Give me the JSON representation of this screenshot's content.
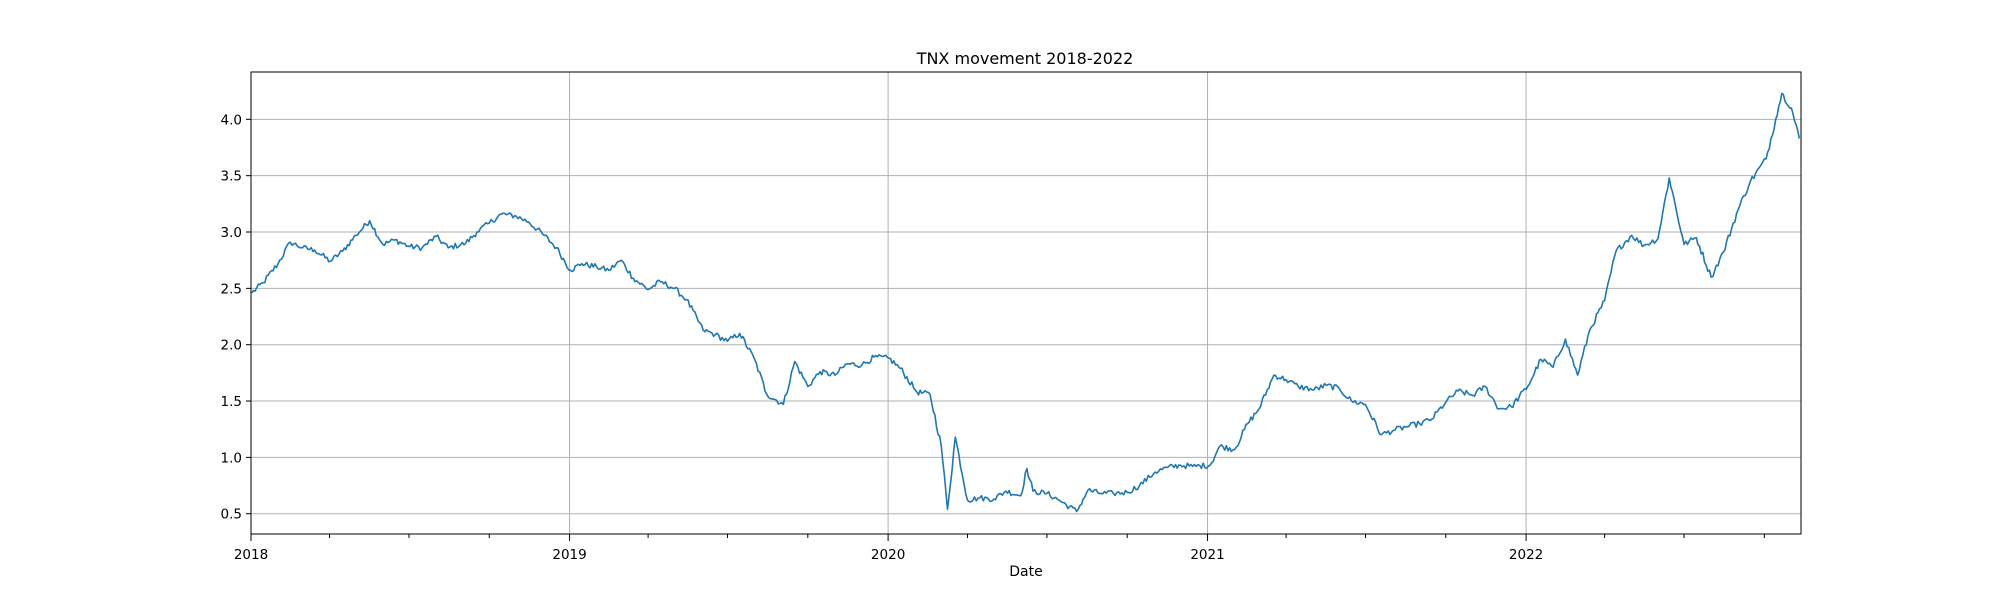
{
  "chart_data": {
    "type": "line",
    "title": "TNX movement 2018-2022",
    "xlabel": "Date",
    "ylabel": "",
    "x_ticks": [
      "2018",
      "2019",
      "2020",
      "2021",
      "2022"
    ],
    "y_ticks": [
      "0.5",
      "1.0",
      "1.5",
      "2.0",
      "2.5",
      "3.0",
      "3.5",
      "4.0"
    ],
    "xlim": [
      "2018-01-01",
      "2022-11-12"
    ],
    "ylim": [
      0.32,
      4.42
    ],
    "grid": true,
    "legend": "none",
    "colors": {
      "line": "#1f77b4",
      "grid": "#b0b0b0",
      "axes": "#000000"
    },
    "series": [
      {
        "x": [
          "2018-01-02",
          "2018-01-15",
          "2018-02-01",
          "2018-02-15",
          "2018-03-01",
          "2018-03-15",
          "2018-04-02",
          "2018-04-16",
          "2018-05-01",
          "2018-05-17",
          "2018-06-01",
          "2018-06-15",
          "2018-07-02",
          "2018-07-16",
          "2018-08-01",
          "2018-08-15",
          "2018-09-04",
          "2018-09-17",
          "2018-10-01",
          "2018-10-15",
          "2018-11-01",
          "2018-11-15",
          "2018-12-03",
          "2018-12-17",
          "2019-01-02",
          "2019-01-15",
          "2019-02-01",
          "2019-02-15",
          "2019-03-01",
          "2019-03-15",
          "2019-04-01",
          "2019-04-15",
          "2019-05-01",
          "2019-05-15",
          "2019-06-03",
          "2019-06-17",
          "2019-07-01",
          "2019-07-15",
          "2019-08-01",
          "2019-08-15",
          "2019-09-03",
          "2019-09-16",
          "2019-10-01",
          "2019-10-15",
          "2019-11-01",
          "2019-11-15",
          "2019-12-02",
          "2019-12-16",
          "2020-01-02",
          "2020-01-15",
          "2020-02-03",
          "2020-02-18",
          "2020-03-02",
          "2020-03-09",
          "2020-03-18",
          "2020-04-01",
          "2020-04-15",
          "2020-05-01",
          "2020-05-15",
          "2020-06-01",
          "2020-06-08",
          "2020-06-15",
          "2020-07-01",
          "2020-07-15",
          "2020-08-04",
          "2020-08-17",
          "2020-09-01",
          "2020-09-15",
          "2020-10-01",
          "2020-10-15",
          "2020-11-02",
          "2020-11-16",
          "2020-12-01",
          "2020-12-15",
          "2021-01-04",
          "2021-01-15",
          "2021-02-01",
          "2021-02-16",
          "2021-03-01",
          "2021-03-18",
          "2021-04-01",
          "2021-04-15",
          "2021-05-03",
          "2021-05-17",
          "2021-06-01",
          "2021-06-15",
          "2021-07-01",
          "2021-07-19",
          "2021-08-02",
          "2021-08-16",
          "2021-09-01",
          "2021-09-15",
          "2021-10-01",
          "2021-10-15",
          "2021-11-01",
          "2021-11-15",
          "2021-12-01",
          "2021-12-15",
          "2022-01-03",
          "2022-01-18",
          "2022-02-01",
          "2022-02-15",
          "2022-03-01",
          "2022-03-15",
          "2022-04-01",
          "2022-04-14",
          "2022-05-02",
          "2022-05-16",
          "2022-06-01",
          "2022-06-14",
          "2022-07-01",
          "2022-07-15",
          "2022-08-01",
          "2022-08-15",
          "2022-09-01",
          "2022-09-15",
          "2022-10-03",
          "2022-10-14",
          "2022-10-21",
          "2022-11-01",
          "2022-11-10"
        ],
        "values": [
          2.46,
          2.55,
          2.72,
          2.91,
          2.86,
          2.84,
          2.74,
          2.83,
          2.97,
          3.1,
          2.89,
          2.93,
          2.87,
          2.86,
          2.96,
          2.86,
          2.9,
          3.0,
          3.08,
          3.16,
          3.14,
          3.09,
          2.97,
          2.86,
          2.66,
          2.72,
          2.69,
          2.66,
          2.75,
          2.59,
          2.49,
          2.56,
          2.5,
          2.4,
          2.13,
          2.09,
          2.03,
          2.1,
          1.87,
          1.56,
          1.47,
          1.85,
          1.63,
          1.76,
          1.73,
          1.83,
          1.82,
          1.89,
          1.88,
          1.79,
          1.58,
          1.56,
          1.1,
          0.54,
          1.18,
          0.62,
          0.64,
          0.63,
          0.7,
          0.66,
          0.9,
          0.7,
          0.68,
          0.62,
          0.52,
          0.71,
          0.68,
          0.68,
          0.69,
          0.75,
          0.87,
          0.91,
          0.93,
          0.92,
          0.93,
          1.1,
          1.07,
          1.3,
          1.43,
          1.73,
          1.69,
          1.63,
          1.6,
          1.64,
          1.61,
          1.5,
          1.47,
          1.2,
          1.24,
          1.27,
          1.3,
          1.34,
          1.49,
          1.59,
          1.55,
          1.63,
          1.43,
          1.45,
          1.63,
          1.87,
          1.8,
          2.05,
          1.73,
          2.13,
          2.39,
          2.83,
          2.97,
          2.88,
          2.94,
          3.48,
          2.89,
          2.95,
          2.6,
          2.82,
          3.2,
          3.45,
          3.65,
          4.0,
          4.23,
          4.1,
          3.83
        ]
      }
    ]
  }
}
